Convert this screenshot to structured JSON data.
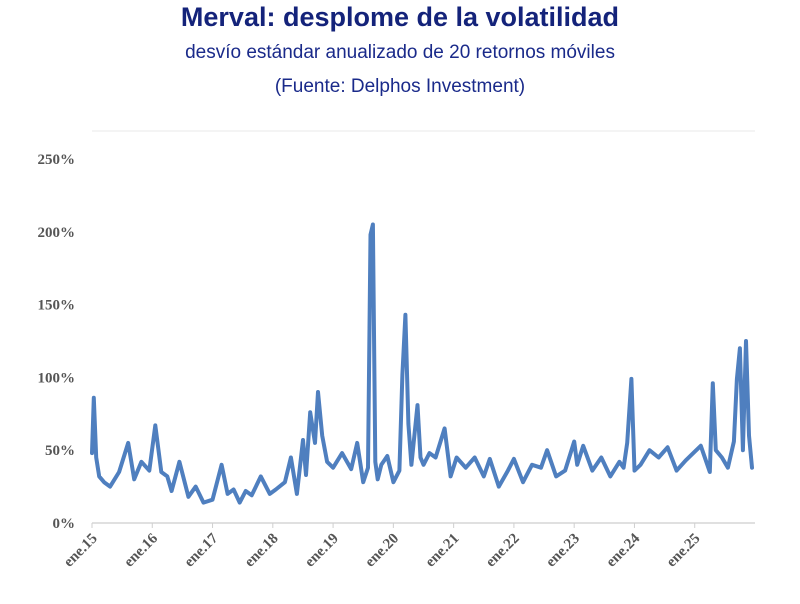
{
  "chart_data": {
    "type": "line",
    "title": "Merval: desplome de la volatilidad",
    "subtitle": "desvío estándar anualizado de 20 retornos móviles",
    "source": "(Fuente: Delphos Investment)",
    "ylim": [
      0,
      250
    ],
    "yticks": [
      "0%",
      "50%",
      "100%",
      "150%",
      "200%",
      "250%"
    ],
    "ytick_values": [
      0,
      50,
      100,
      150,
      200,
      250
    ],
    "xticks": [
      "ene.15",
      "ene.16",
      "ene.17",
      "ene.18",
      "ene.19",
      "ene.20",
      "ene.21",
      "ene.22",
      "ene.23",
      "ene.24",
      "ene.25"
    ],
    "xlim": [
      2015.0,
      2026.0
    ],
    "grid": false,
    "line_color": "#4f7fbf",
    "series": [
      {
        "name": "",
        "x": [
          2015.0,
          2015.03,
          2015.07,
          2015.12,
          2015.2,
          2015.3,
          2015.45,
          2015.6,
          2015.7,
          2015.82,
          2015.95,
          2016.05,
          2016.15,
          2016.25,
          2016.32,
          2016.45,
          2016.6,
          2016.72,
          2016.85,
          2017.0,
          2017.15,
          2017.25,
          2017.35,
          2017.45,
          2017.55,
          2017.65,
          2017.8,
          2017.95,
          2018.05,
          2018.2,
          2018.3,
          2018.4,
          2018.5,
          2018.55,
          2018.62,
          2018.7,
          2018.75,
          2018.82,
          2018.9,
          2019.0,
          2019.15,
          2019.3,
          2019.4,
          2019.5,
          2019.58,
          2019.62,
          2019.66,
          2019.7,
          2019.74,
          2019.8,
          2019.9,
          2020.0,
          2020.1,
          2020.15,
          2020.2,
          2020.25,
          2020.3,
          2020.4,
          2020.45,
          2020.5,
          2020.6,
          2020.7,
          2020.85,
          2020.95,
          2021.05,
          2021.2,
          2021.35,
          2021.5,
          2021.6,
          2021.75,
          2021.9,
          2022.0,
          2022.15,
          2022.3,
          2022.45,
          2022.55,
          2022.7,
          2022.85,
          2023.0,
          2023.05,
          2023.15,
          2023.3,
          2023.45,
          2023.6,
          2023.75,
          2023.82,
          2023.88,
          2023.95,
          2024.0,
          2024.1,
          2024.25,
          2024.4,
          2024.55,
          2024.7,
          2024.85,
          2025.0,
          2025.1,
          2025.25,
          2025.3,
          2025.35,
          2025.45,
          2025.55,
          2025.65,
          2025.7,
          2025.75,
          2025.8,
          2025.85,
          2025.9,
          2025.95
        ],
        "values": [
          48,
          86,
          45,
          32,
          28,
          25,
          35,
          55,
          30,
          42,
          36,
          67,
          35,
          32,
          22,
          42,
          18,
          25,
          14,
          16,
          40,
          20,
          23,
          14,
          22,
          19,
          32,
          20,
          23,
          28,
          45,
          20,
          57,
          33,
          76,
          55,
          90,
          60,
          42,
          38,
          48,
          37,
          55,
          28,
          38,
          198,
          205,
          42,
          30,
          40,
          46,
          28,
          36,
          102,
          143,
          68,
          40,
          81,
          45,
          40,
          48,
          45,
          65,
          32,
          45,
          38,
          45,
          32,
          44,
          25,
          36,
          44,
          28,
          40,
          38,
          50,
          32,
          36,
          56,
          40,
          53,
          36,
          45,
          32,
          42,
          38,
          55,
          99,
          36,
          40,
          50,
          45,
          52,
          36,
          43,
          49,
          53,
          35,
          96,
          50,
          45,
          38,
          56,
          99,
          120,
          50,
          125,
          60,
          38
        ]
      }
    ]
  }
}
